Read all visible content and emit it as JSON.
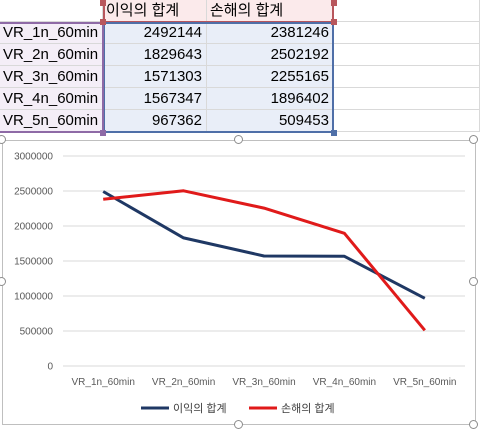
{
  "sheet": {
    "header": [
      "",
      "이익의 합계",
      "손해의 합계",
      ""
    ],
    "rows": [
      {
        "label": "VR_1n_60min",
        "profit": "2492144",
        "loss": "2381246"
      },
      {
        "label": "VR_2n_60min",
        "profit": "1829643",
        "loss": "2502192"
      },
      {
        "label": "VR_3n_60min",
        "profit": "1571303",
        "loss": "2255165"
      },
      {
        "label": "VR_4n_60min",
        "profit": "1567347",
        "loss": "1896402"
      },
      {
        "label": "VR_5n_60min",
        "profit": "967362",
        "loss": "509453"
      }
    ],
    "range_colors": {
      "header": "#b8565c",
      "values": "#4f6fa8",
      "labels": "#8e6aa6"
    }
  },
  "chart_data": {
    "type": "line",
    "title": "",
    "xlabel": "",
    "ylabel": "",
    "categories": [
      "VR_1n_60min",
      "VR_2n_60min",
      "VR_3n_60min",
      "VR_4n_60min",
      "VR_5n_60min"
    ],
    "series": [
      {
        "name": "이익의 합계",
        "color": "#1f3864",
        "values": [
          2492144,
          1829643,
          1571303,
          1567347,
          967362
        ]
      },
      {
        "name": "손해의 합계",
        "color": "#e01a1a",
        "values": [
          2381246,
          2502192,
          2255165,
          1896402,
          509453
        ]
      }
    ],
    "ylim": [
      0,
      3000000
    ],
    "yticks": [
      "0",
      "500000",
      "1000000",
      "1500000",
      "2000000",
      "2500000",
      "3000000"
    ],
    "grid": true,
    "legend": "bottom"
  }
}
